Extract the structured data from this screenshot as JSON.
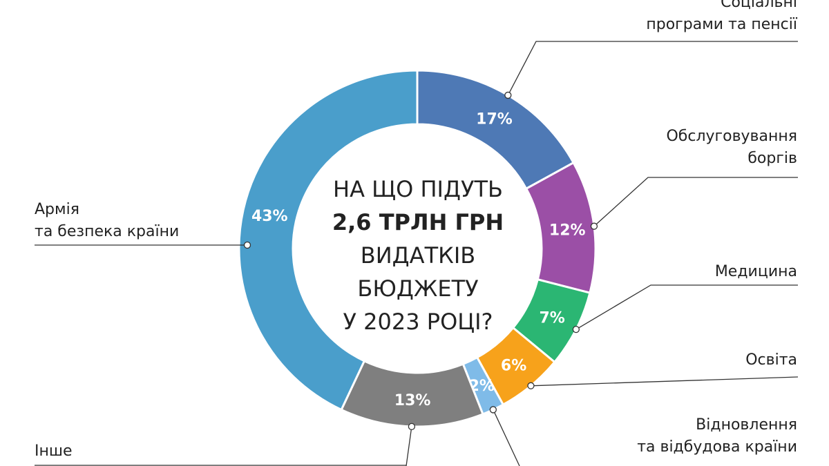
{
  "center": {
    "line1": "НА ЩО ПІДУТЬ",
    "line2": "2,6 ТРЛН ГРН",
    "line3": "ВИДАТКІВ",
    "line4": "БЮДЖЕТУ",
    "line5": "У 2023 РОЦІ?"
  },
  "chart_data": {
    "type": "pie",
    "variant": "donut",
    "slices": [
      {
        "label": "Соціальні програми та пенсії",
        "label_lines": [
          "Соціальні",
          "програми та пенсії"
        ],
        "value": 17,
        "pct_label": "17%",
        "color": "#4e79b5"
      },
      {
        "label": "Обслуговування боргів",
        "label_lines": [
          "Обслуговування",
          "боргів"
        ],
        "value": 12,
        "pct_label": "12%",
        "color": "#9b4fa6"
      },
      {
        "label": "Медицина",
        "label_lines": [
          "Медицина"
        ],
        "value": 7,
        "pct_label": "7%",
        "color": "#2bb673"
      },
      {
        "label": "Освіта",
        "label_lines": [
          "Освіта"
        ],
        "value": 6,
        "pct_label": "6%",
        "color": "#f7a21b"
      },
      {
        "label": "Відновлення та відбудова країни",
        "label_lines": [
          "Відновлення",
          "та відбудова країни"
        ],
        "value": 2,
        "pct_label": "2%",
        "color": "#7fbbe8"
      },
      {
        "label": "Інше",
        "label_lines": [
          "Інше"
        ],
        "value": 13,
        "pct_label": "13%",
        "color": "#7f7f7f"
      },
      {
        "label": "Армія та безпека країни",
        "label_lines": [
          "Армія",
          "та безпека країни"
        ],
        "value": 43,
        "pct_label": "43%",
        "color": "#4a9ecb"
      }
    ]
  }
}
